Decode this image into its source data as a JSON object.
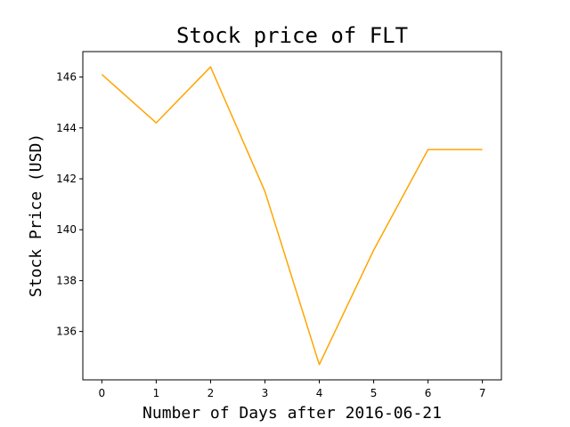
{
  "chart_data": {
    "type": "line",
    "title": "Stock price of FLT",
    "xlabel": "Number of Days after 2016-06-21",
    "ylabel": "Stock Price (USD)",
    "x": [
      0,
      1,
      2,
      3,
      4,
      5,
      6,
      7
    ],
    "series": [
      {
        "values": [
          146.1,
          144.2,
          146.4,
          141.5,
          134.7,
          139.2,
          143.15,
          143.15
        ]
      }
    ],
    "xlim": [
      -0.35,
      7.35
    ],
    "ylim": [
      134.1,
      147.0
    ],
    "xticks": [
      0,
      1,
      2,
      3,
      4,
      5,
      6,
      7
    ],
    "yticks": [
      136,
      138,
      140,
      142,
      144,
      146
    ],
    "grid": false,
    "colors": {
      "line": "#ffa500",
      "axes": "#000000",
      "background": "#ffffff"
    }
  }
}
